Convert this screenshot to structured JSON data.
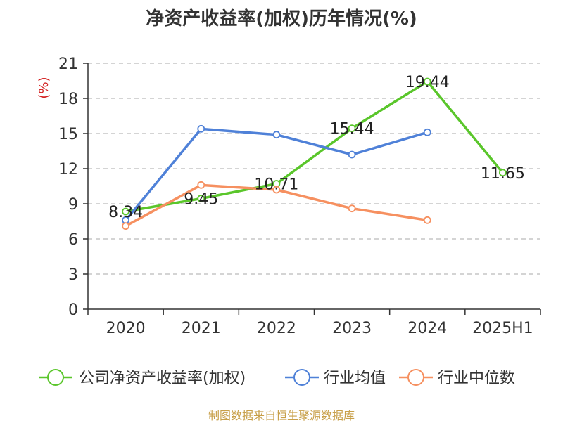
{
  "chart_data": {
    "type": "line",
    "title": "净资产收益率(加权)历年情况(%)",
    "ylabel": "(%)",
    "xlabel": "",
    "categories": [
      "2020",
      "2021",
      "2022",
      "2023",
      "2024",
      "2025H1"
    ],
    "ylim": [
      0,
      21
    ],
    "yticks": [
      0,
      3,
      6,
      9,
      12,
      15,
      18,
      21
    ],
    "grid": true,
    "legend": "bottom",
    "series": [
      {
        "name": "公司净资产收益率(加权)",
        "color": "#5ac62b",
        "values": [
          8.34,
          9.45,
          10.71,
          15.44,
          19.44,
          11.65
        ],
        "labels": [
          "8.34",
          "9.45",
          "10.71",
          "15.44",
          "19.44",
          "11.65"
        ]
      },
      {
        "name": "行业均值",
        "color": "#4f81d8",
        "values": [
          7.6,
          15.4,
          14.9,
          13.2,
          15.1,
          null
        ]
      },
      {
        "name": "行业中位数",
        "color": "#f69060",
        "values": [
          7.1,
          10.6,
          10.2,
          8.6,
          7.6,
          null
        ]
      }
    ]
  },
  "source": "制图数据来自恒生聚源数据库"
}
